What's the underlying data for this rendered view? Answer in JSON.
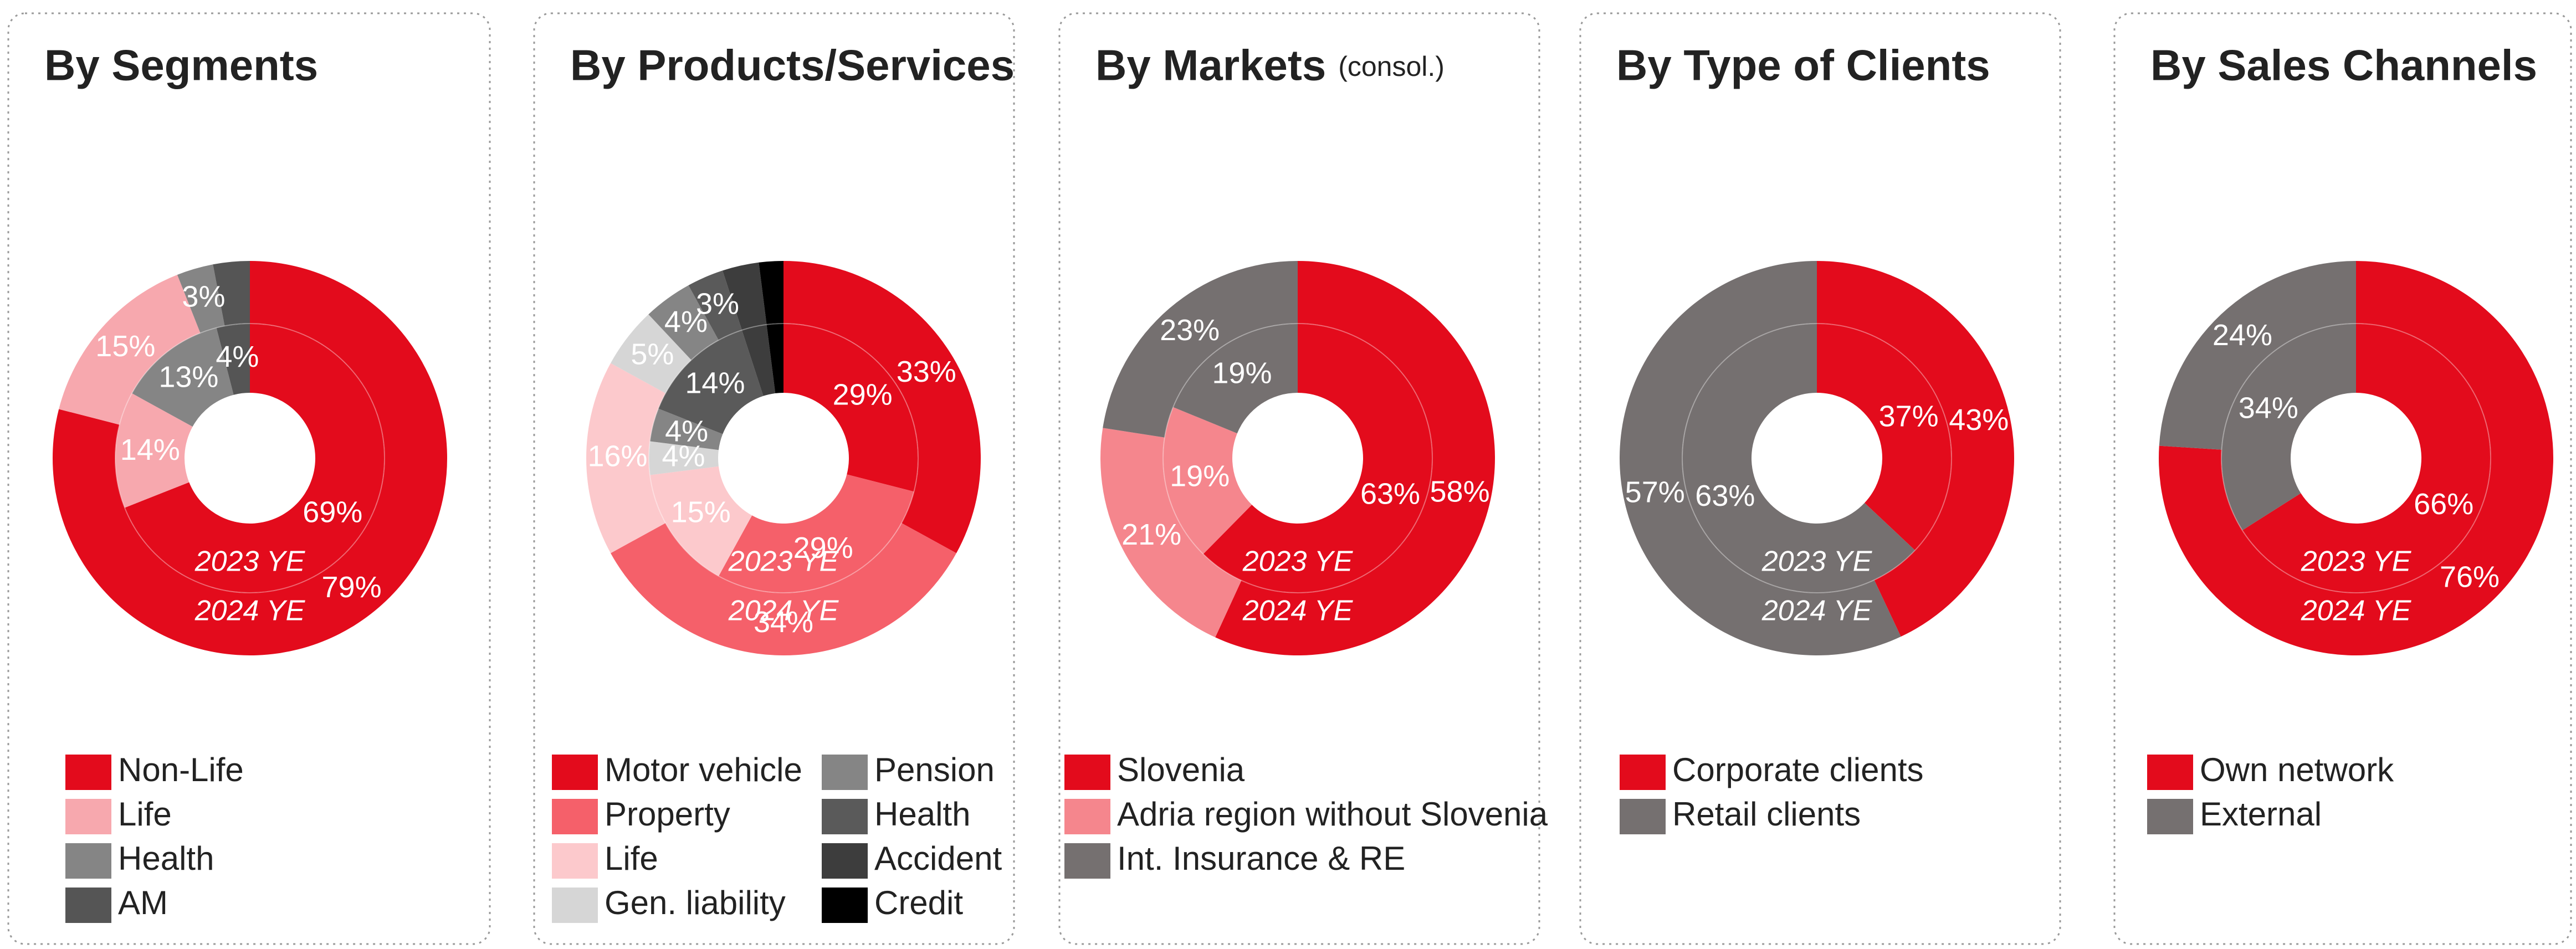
{
  "chart_data": [
    {
      "type": "pie",
      "title": "By Segments",
      "categories": [
        "Non-Life",
        "Life",
        "Health",
        "AM"
      ],
      "colors": [
        "#e30b1c",
        "#f7a8ae",
        "#858585",
        "#555555"
      ],
      "series": [
        {
          "name": "2023 YE",
          "values": [
            69,
            14,
            13,
            4
          ],
          "value_labels": [
            "69%",
            "14%",
            "13%",
            "4%"
          ]
        },
        {
          "name": "2024 YE",
          "values": [
            79,
            15,
            3,
            3
          ],
          "value_labels": [
            "79%",
            "15%",
            "3%",
            null
          ]
        }
      ]
    },
    {
      "type": "pie",
      "title": "By Products/Services",
      "categories": [
        "Motor vehicle",
        "Property",
        "Life",
        "Gen. liability",
        "Pension",
        "Health",
        "Accident",
        "Credit"
      ],
      "colors": [
        "#e30b1c",
        "#f5606a",
        "#fcc9cc",
        "#d6d6d6",
        "#858585",
        "#5a5a5a",
        "#3d3d3d",
        "#000000"
      ],
      "series": [
        {
          "name": "2023 YE",
          "values": [
            29,
            29,
            15,
            4,
            4,
            14,
            3,
            2
          ],
          "value_labels": [
            "29%",
            "29%",
            "15%",
            "4%",
            "4%",
            "14%",
            null,
            null
          ]
        },
        {
          "name": "2024 YE",
          "values": [
            33,
            34,
            16,
            5,
            4,
            3,
            3,
            2
          ],
          "value_labels": [
            "33%",
            "34%",
            "16%",
            "5%",
            "4%",
            "3%",
            null,
            null
          ]
        }
      ]
    },
    {
      "type": "pie",
      "title": "By Markets",
      "subtitle": "(consol.)",
      "categories": [
        "Slovenia",
        "Adria region without Slovenia",
        "Int. Insurance & RE"
      ],
      "colors": [
        "#e30b1c",
        "#f5868d",
        "#757070"
      ],
      "series": [
        {
          "name": "2023 YE",
          "values": [
            63,
            19,
            19
          ],
          "value_labels": [
            "63%",
            "19%",
            "19%"
          ]
        },
        {
          "name": "2024 YE",
          "values": [
            58,
            21,
            23
          ],
          "value_labels": [
            "58%",
            "21%",
            "23%"
          ]
        }
      ]
    },
    {
      "type": "pie",
      "title": "By Type of Clients",
      "categories": [
        "Corporate clients",
        "Retail clients"
      ],
      "colors": [
        "#e30b1c",
        "#757070"
      ],
      "series": [
        {
          "name": "2023 YE",
          "values": [
            37,
            63
          ],
          "value_labels": [
            "37%",
            "63%"
          ]
        },
        {
          "name": "2024 YE",
          "values": [
            43,
            57
          ],
          "value_labels": [
            "43%",
            "57%"
          ]
        }
      ]
    },
    {
      "type": "pie",
      "title": "By Sales Channels",
      "categories": [
        "Own network",
        "External"
      ],
      "colors": [
        "#e30b1c",
        "#757070"
      ],
      "series": [
        {
          "name": "2023 YE",
          "values": [
            66,
            34
          ],
          "value_labels": [
            "66%",
            "34%"
          ]
        },
        {
          "name": "2024 YE",
          "values": [
            76,
            24
          ],
          "value_labels": [
            "76%",
            "24%"
          ]
        }
      ]
    }
  ]
}
